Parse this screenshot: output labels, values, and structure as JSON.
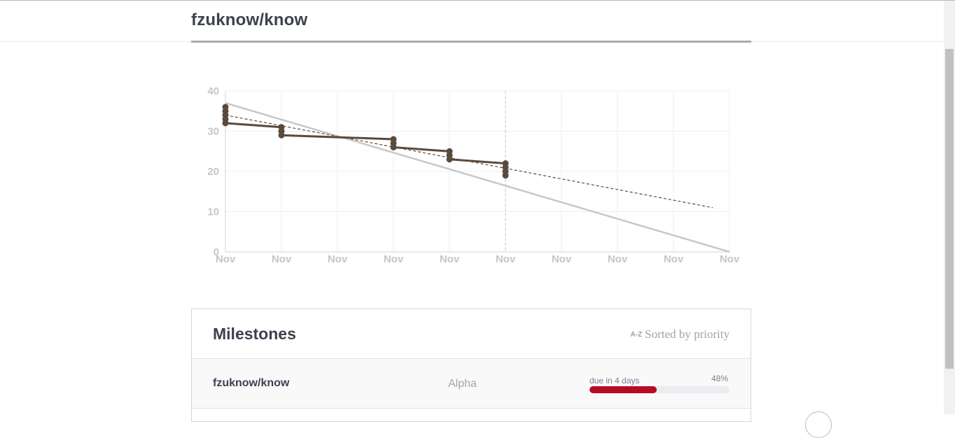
{
  "header": {
    "repo_title": "fzuknow/know"
  },
  "chart_data": {
    "type": "line",
    "title": "",
    "xlabel": "",
    "ylabel": "",
    "x_tick_labels": [
      "Nov",
      "Nov",
      "Nov",
      "Nov",
      "Nov",
      "Nov",
      "Nov",
      "Nov",
      "Nov",
      "Nov"
    ],
    "y_ticks": [
      0,
      10,
      20,
      30,
      40
    ],
    "ylim": [
      0,
      40
    ],
    "xlim": [
      0,
      9
    ],
    "today_x": 5,
    "grid": true,
    "series": [
      {
        "style": "ideal",
        "color": "#c8c8c8",
        "points": [
          [
            0,
            37
          ],
          [
            9,
            0
          ]
        ]
      },
      {
        "style": "trend",
        "color": "#5a4a3c",
        "points": [
          [
            0,
            34
          ],
          [
            8.7,
            11
          ]
        ]
      },
      {
        "style": "actual",
        "color": "#5a4a3c",
        "points": [
          [
            0,
            36
          ],
          [
            0,
            35
          ],
          [
            0,
            34
          ],
          [
            0,
            33
          ],
          [
            0,
            32
          ],
          [
            1,
            31
          ],
          [
            1,
            30
          ],
          [
            1,
            29
          ],
          [
            3,
            28
          ],
          [
            3,
            27
          ],
          [
            3,
            26
          ],
          [
            4,
            25
          ],
          [
            4,
            24
          ],
          [
            4,
            23
          ],
          [
            5,
            22
          ],
          [
            5,
            21
          ],
          [
            5,
            20
          ],
          [
            5,
            19
          ]
        ]
      }
    ]
  },
  "milestones": {
    "title": "Milestones",
    "sort_icon": "A-Z",
    "sort_label": "Sorted by priority",
    "rows": [
      {
        "name": "fzuknow/know",
        "milestone": "Alpha",
        "due": "due in 4 days",
        "percent_label": "48%",
        "progress": 0.48,
        "color": "#b80b23"
      }
    ]
  }
}
